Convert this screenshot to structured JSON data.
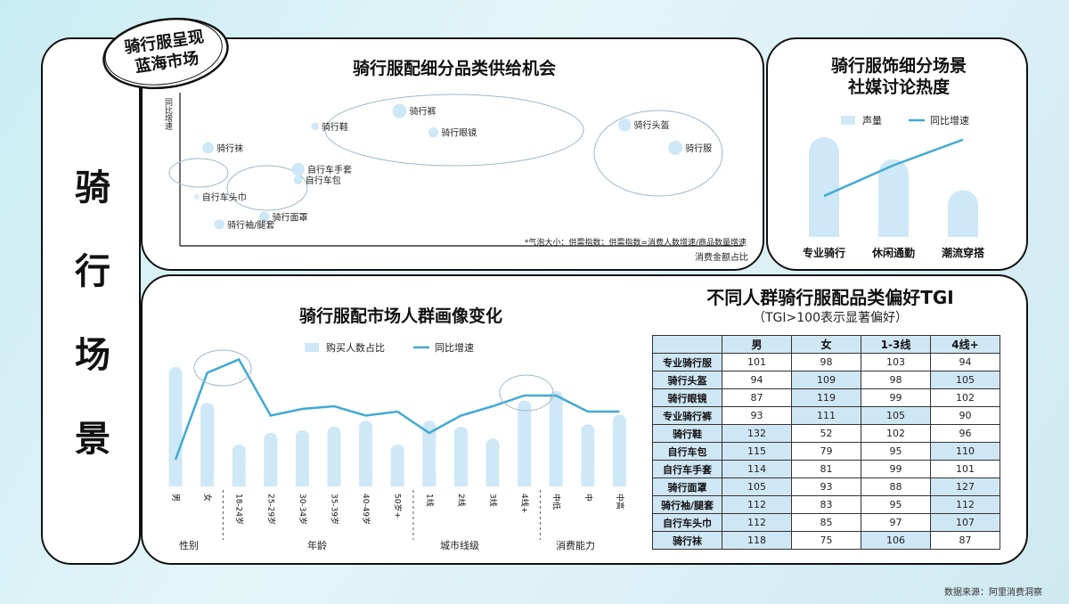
{
  "side_title": [
    "骑",
    "行",
    "场",
    "景"
  ],
  "badge": {
    "line1": "骑行服呈现",
    "line2": "蓝海市场"
  },
  "supply": {
    "title": "骑行服配细分品类供给机会",
    "y_label": "同比增速",
    "x_label": "消费金额占比",
    "note": "*气泡大小：供需指数；供需指数=消费人数增速/商品数量增速"
  },
  "scene": {
    "title_line1": "骑行服饰细分场景",
    "title_line2": "社媒讨论热度",
    "legend_bar": "声量",
    "legend_line": "同比增速"
  },
  "crowd": {
    "title": "骑行服配市场人群画像变化",
    "legend_bar": "购买人数占比",
    "legend_line": "同比增速",
    "groups": [
      "性别",
      "年龄",
      "城市线级",
      "消费能力"
    ]
  },
  "tgi": {
    "title": "不同人群骑行服配品类偏好TGI",
    "subtitle": "（TGI>100表示显著偏好）",
    "columns": [
      "",
      "男",
      "女",
      "1-3线",
      "4线+"
    ],
    "rows": [
      {
        "name": "专业骑行服",
        "values": [
          101,
          98,
          103,
          94
        ]
      },
      {
        "name": "骑行头盔",
        "values": [
          94,
          109,
          98,
          105
        ]
      },
      {
        "name": "骑行眼镜",
        "values": [
          87,
          119,
          99,
          102
        ]
      },
      {
        "name": "专业骑行裤",
        "values": [
          93,
          111,
          105,
          90
        ]
      },
      {
        "name": "骑行鞋",
        "values": [
          132,
          52,
          102,
          96
        ]
      },
      {
        "name": "自行车包",
        "values": [
          115,
          79,
          95,
          110
        ]
      },
      {
        "name": "自行车手套",
        "values": [
          114,
          81,
          99,
          101
        ]
      },
      {
        "name": "骑行面罩",
        "values": [
          105,
          93,
          88,
          127
        ]
      },
      {
        "name": "骑行袖/腿套",
        "values": [
          112,
          83,
          95,
          112
        ]
      },
      {
        "name": "自行车头巾",
        "values": [
          112,
          85,
          97,
          107
        ]
      },
      {
        "name": "骑行袜",
        "values": [
          118,
          75,
          106,
          87
        ]
      }
    ]
  },
  "source": "数据来源：阿里消费洞察",
  "colors": {
    "bar": "#cfe8f7",
    "line": "#3fa9d6",
    "highlight": "#cfe6f4",
    "border": "#111111"
  },
  "chart_data": [
    {
      "type": "scatter",
      "title": "骑行服配细分品类供给机会",
      "xlabel": "消费金额占比",
      "ylabel": "同比增速",
      "points": [
        {
          "name": "骑行裤",
          "x": 0.39,
          "y": 0.88,
          "size": 8
        },
        {
          "name": "骑行鞋",
          "x": 0.24,
          "y": 0.78,
          "size": 3
        },
        {
          "name": "骑行眼镜",
          "x": 0.45,
          "y": 0.74,
          "size": 5
        },
        {
          "name": "骑行头盔",
          "x": 0.79,
          "y": 0.79,
          "size": 7
        },
        {
          "name": "骑行服",
          "x": 0.88,
          "y": 0.64,
          "size": 8
        },
        {
          "name": "骑行袜",
          "x": 0.05,
          "y": 0.64,
          "size": 6
        },
        {
          "name": "自行车手套",
          "x": 0.21,
          "y": 0.5,
          "size": 7
        },
        {
          "name": "自行车包",
          "x": 0.21,
          "y": 0.43,
          "size": 4
        },
        {
          "name": "自行车头巾",
          "x": 0.03,
          "y": 0.32,
          "size": 1
        },
        {
          "name": "骑行面罩",
          "x": 0.15,
          "y": 0.19,
          "size": 5
        },
        {
          "name": "骑行袖/腿套",
          "x": 0.07,
          "y": 0.14,
          "size": 5
        }
      ]
    },
    {
      "type": "bar",
      "title": "骑行服饰细分场景 社媒讨论热度",
      "categories": [
        "专业骑行",
        "休闲通勤",
        "潮流穿搭"
      ],
      "series": [
        {
          "name": "声量",
          "type": "bar",
          "values": [
            100,
            78,
            47
          ]
        },
        {
          "name": "同比增速",
          "type": "line",
          "values": [
            40,
            70,
            95
          ]
        }
      ]
    },
    {
      "type": "bar",
      "title": "骑行服配市场人群画像变化",
      "categories": [
        "男",
        "女",
        "18-24岁",
        "25-29岁",
        "30-34岁",
        "35-39岁",
        "40-49岁",
        "50岁+",
        "1线",
        "2线",
        "3线",
        "4线+",
        "中低",
        "中",
        "中高"
      ],
      "groups": [
        {
          "name": "性别",
          "categories": [
            "男",
            "女"
          ]
        },
        {
          "name": "年龄",
          "categories": [
            "18-24岁",
            "25-29岁",
            "30-34岁",
            "35-39岁",
            "40-49岁",
            "50岁+"
          ]
        },
        {
          "name": "城市线级",
          "categories": [
            "1线",
            "2线",
            "3线",
            "4线+"
          ]
        },
        {
          "name": "消费能力",
          "categories": [
            "中低",
            "中",
            "中高"
          ]
        }
      ],
      "series": [
        {
          "name": "购买人数占比",
          "type": "bar",
          "values": [
            100,
            70,
            35,
            45,
            47,
            50,
            55,
            35,
            55,
            50,
            40,
            72,
            80,
            52,
            60
          ]
        },
        {
          "name": "同比增速",
          "type": "line",
          "values": [
            20,
            85,
            95,
            53,
            58,
            60,
            53,
            56,
            40,
            53,
            60,
            68,
            68,
            56,
            56
          ]
        }
      ]
    }
  ]
}
